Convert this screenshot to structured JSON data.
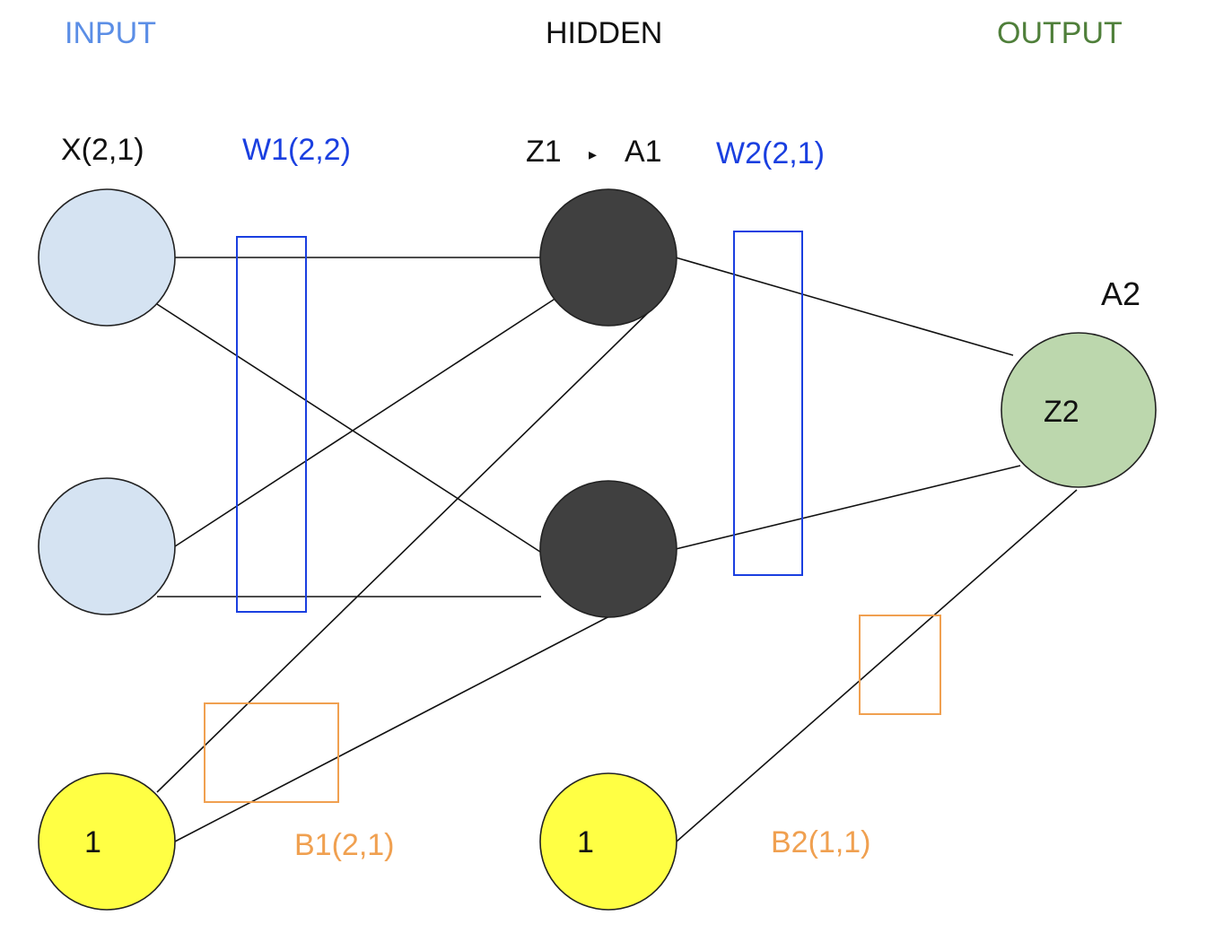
{
  "headers": {
    "input": "INPUT",
    "hidden": "HIDDEN",
    "output": "OUTPUT"
  },
  "labels": {
    "x": "X(2,1)",
    "w1": "W1(2,2)",
    "z1": "Z1",
    "arrow": "▸",
    "a1": "A1",
    "w2": "W2(2,1)",
    "a2": "A2",
    "z2": "Z2",
    "b1": "B1(2,1)",
    "b2": "B2(1,1)"
  },
  "bias_nodes": {
    "input_bias": "1",
    "hidden_bias": "1"
  },
  "colors": {
    "input_node": "#d5e3f2",
    "hidden_node": "#404040",
    "output_node": "#bcd7ad",
    "bias_node": "#ffff44",
    "weight_box": "#1a3fe0",
    "bias_box": "#f0a050"
  }
}
